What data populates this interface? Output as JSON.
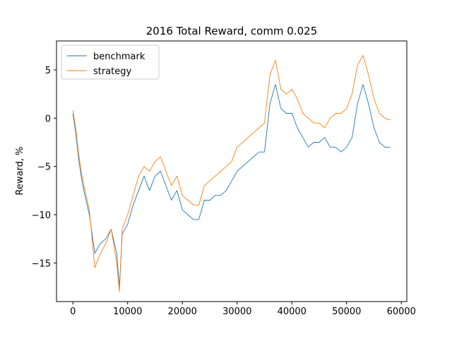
{
  "chart_data": {
    "type": "line",
    "title": "2016 Total Reward, comm 0.025",
    "xlabel": "",
    "ylabel": "Reward, %",
    "xlim": [
      -3000,
      61000
    ],
    "ylim": [
      -19.0,
      8.0
    ],
    "xticks": [
      0,
      10000,
      20000,
      30000,
      40000,
      50000,
      60000
    ],
    "xtick_labels": [
      "0",
      "10000",
      "20000",
      "30000",
      "40000",
      "50000",
      "60000"
    ],
    "yticks": [
      -15,
      -10,
      -5,
      0,
      5
    ],
    "ytick_labels": [
      "−15",
      "−10",
      "−5",
      "0",
      "5"
    ],
    "grid": false,
    "legend_position": "upper-left",
    "series": [
      {
        "name": "benchmark",
        "color": "#1f77b4",
        "x": [
          0,
          500,
          1000,
          1500,
          2000,
          3000,
          4000,
          5000,
          6000,
          7000,
          8000,
          8500,
          9000,
          10000,
          11000,
          12000,
          13000,
          14000,
          15000,
          16000,
          17000,
          18000,
          19000,
          20000,
          21000,
          22000,
          23000,
          24000,
          25000,
          26000,
          27000,
          28000,
          29000,
          30000,
          31000,
          32000,
          33000,
          34000,
          35000,
          36000,
          37000,
          38000,
          39000,
          40000,
          41000,
          42000,
          43000,
          44000,
          45000,
          46000,
          47000,
          48000,
          49000,
          50000,
          51000,
          52000,
          53000,
          54000,
          55000,
          56000,
          57000,
          58000
        ],
        "y": [
          0.5,
          -1.5,
          -4.0,
          -6.0,
          -7.5,
          -10.0,
          -14.0,
          -13.0,
          -12.5,
          -11.5,
          -14.0,
          -17.5,
          -12.0,
          -11.0,
          -9.0,
          -7.5,
          -6.0,
          -7.5,
          -6.0,
          -5.5,
          -7.0,
          -8.5,
          -7.5,
          -9.5,
          -10.0,
          -10.5,
          -10.5,
          -8.5,
          -8.5,
          -8.0,
          -8.0,
          -7.5,
          -6.5,
          -5.5,
          -5.0,
          -4.5,
          -4.0,
          -3.5,
          -3.5,
          1.5,
          3.5,
          1.0,
          0.5,
          0.5,
          -1.0,
          -2.0,
          -3.0,
          -2.5,
          -2.5,
          -2.0,
          -3.0,
          -3.0,
          -3.5,
          -3.0,
          -2.0,
          1.5,
          3.5,
          1.5,
          -1.0,
          -2.5,
          -3.0,
          -3.0
        ]
      },
      {
        "name": "strategy",
        "color": "#ff7f0e",
        "x": [
          0,
          500,
          1000,
          1500,
          2000,
          3000,
          4000,
          5000,
          6000,
          7000,
          8000,
          8500,
          9000,
          10000,
          11000,
          12000,
          13000,
          14000,
          15000,
          16000,
          17000,
          18000,
          19000,
          20000,
          21000,
          22000,
          23000,
          24000,
          25000,
          26000,
          27000,
          28000,
          29000,
          30000,
          31000,
          32000,
          33000,
          34000,
          35000,
          36000,
          37000,
          38000,
          39000,
          40000,
          41000,
          42000,
          43000,
          44000,
          45000,
          46000,
          47000,
          48000,
          49000,
          50000,
          51000,
          52000,
          53000,
          54000,
          55000,
          56000,
          57000,
          58000
        ],
        "y": [
          0.8,
          -1.0,
          -3.5,
          -5.5,
          -7.0,
          -9.5,
          -15.5,
          -14.0,
          -13.0,
          -11.5,
          -15.0,
          -18.0,
          -11.5,
          -10.0,
          -8.0,
          -6.0,
          -5.0,
          -5.5,
          -4.5,
          -4.0,
          -5.5,
          -7.0,
          -6.0,
          -8.0,
          -8.5,
          -9.0,
          -9.0,
          -7.0,
          -6.5,
          -6.0,
          -5.5,
          -5.0,
          -4.5,
          -3.0,
          -2.5,
          -2.0,
          -1.5,
          -1.0,
          -0.5,
          4.5,
          6.0,
          3.0,
          2.5,
          3.0,
          2.0,
          0.5,
          0.0,
          -0.5,
          -0.5,
          -1.0,
          0.0,
          0.5,
          0.5,
          1.0,
          2.5,
          5.5,
          6.5,
          4.5,
          2.0,
          0.5,
          0.0,
          -0.2
        ]
      }
    ]
  }
}
